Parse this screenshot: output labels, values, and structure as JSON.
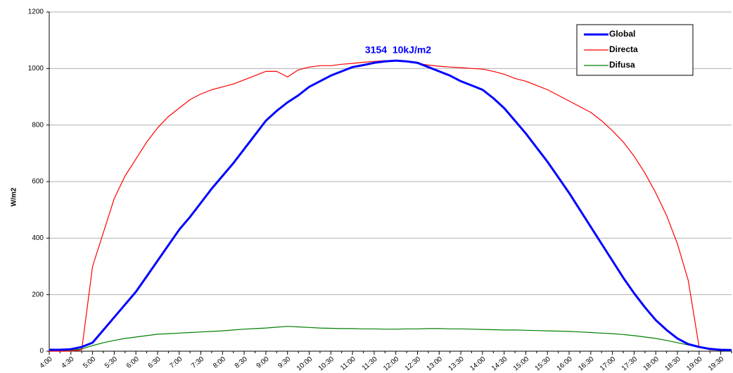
{
  "chart_data": {
    "type": "line",
    "annotation": "3154  10kJ/m2",
    "y_label": "W/m2",
    "categories": [
      "4:00",
      null,
      "4:30",
      null,
      "5:00",
      null,
      "5:30",
      null,
      "6:00",
      null,
      "6:30",
      null,
      "7:00",
      null,
      "7:30",
      null,
      "8:00",
      null,
      "8:30",
      null,
      "9:00",
      null,
      "9:30",
      null,
      "10:00",
      null,
      "10:30",
      null,
      "11:00",
      null,
      "11:30",
      null,
      "12:00",
      null,
      "12:30",
      null,
      "13:00",
      null,
      "13:30",
      null,
      "14:00",
      null,
      "14:30",
      null,
      "15:00",
      null,
      "15:30",
      null,
      "16:00",
      null,
      "16:30",
      null,
      "17:00",
      null,
      "17:30",
      null,
      "18:00",
      null,
      "18:30",
      null,
      "19:00",
      null,
      "19:30",
      null
    ],
    "series": [
      {
        "name": "Global",
        "color": "#0000ff",
        "width": 3,
        "values": [
          5,
          5,
          7,
          15,
          30,
          75,
          120,
          165,
          210,
          265,
          320,
          375,
          430,
          475,
          525,
          575,
          620,
          665,
          715,
          765,
          815,
          850,
          880,
          905,
          935,
          955,
          975,
          990,
          1005,
          1012,
          1020,
          1025,
          1028,
          1025,
          1020,
          1005,
          990,
          975,
          955,
          940,
          925,
          895,
          860,
          815,
          770,
          720,
          670,
          615,
          560,
          500,
          440,
          380,
          320,
          260,
          205,
          155,
          110,
          75,
          45,
          25,
          15,
          8,
          5,
          4
        ]
      },
      {
        "name": "Directa",
        "color": "#ff0000",
        "width": 1.2,
        "values": [
          0,
          0,
          0,
          5,
          300,
          420,
          540,
          620,
          680,
          740,
          790,
          830,
          860,
          890,
          910,
          925,
          935,
          945,
          960,
          975,
          990,
          990,
          970,
          995,
          1005,
          1010,
          1010,
          1015,
          1018,
          1022,
          1025,
          1028,
          1027,
          1025,
          1018,
          1012,
          1008,
          1005,
          1003,
          1000,
          998,
          990,
          980,
          965,
          955,
          940,
          925,
          905,
          885,
          865,
          845,
          815,
          780,
          740,
          690,
          630,
          560,
          480,
          380,
          250,
          15,
          5,
          3,
          2
        ]
      },
      {
        "name": "Difusa",
        "color": "#008000",
        "width": 1.2,
        "values": [
          2,
          2,
          3,
          8,
          20,
          30,
          38,
          45,
          50,
          55,
          60,
          62,
          64,
          66,
          68,
          70,
          72,
          75,
          78,
          80,
          82,
          85,
          88,
          86,
          84,
          82,
          81,
          80,
          80,
          79,
          79,
          78,
          78,
          79,
          79,
          80,
          80,
          79,
          79,
          78,
          77,
          76,
          75,
          75,
          74,
          73,
          72,
          71,
          70,
          68,
          66,
          64,
          62,
          59,
          55,
          50,
          45,
          38,
          30,
          22,
          15,
          10,
          5,
          3
        ]
      }
    ],
    "ylim": [
      0,
      1200
    ],
    "yticks": [
      0,
      200,
      400,
      600,
      800,
      1000,
      1200
    ],
    "grid": true,
    "legend": "top-right"
  }
}
